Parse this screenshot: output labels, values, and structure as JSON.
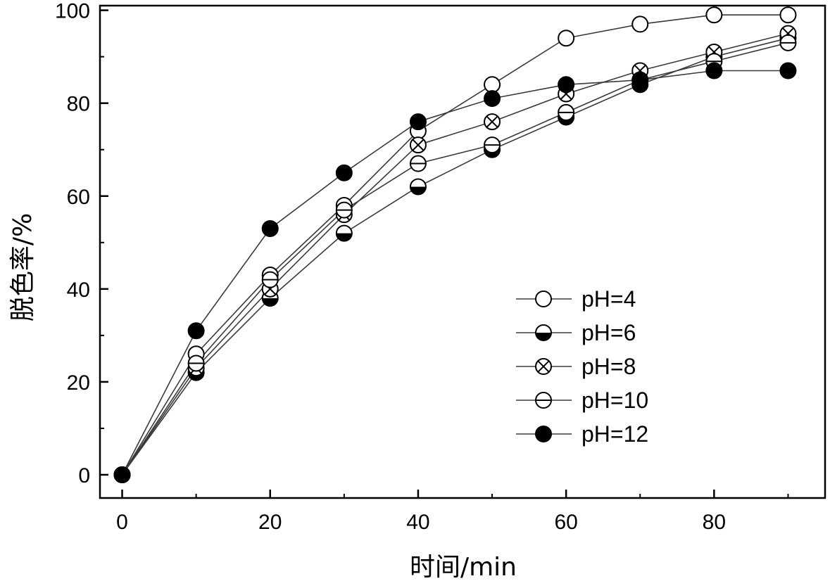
{
  "chart_data": {
    "type": "line",
    "title": "",
    "xlabel": "时间/min",
    "ylabel": "脱色率/%",
    "xlim": [
      -3,
      95
    ],
    "ylim": [
      -5,
      101
    ],
    "x_ticks": [
      0,
      20,
      40,
      60,
      80
    ],
    "y_ticks": [
      0,
      20,
      40,
      60,
      80,
      100
    ],
    "grid": false,
    "legend_position": "right-center",
    "x": [
      0,
      10,
      20,
      30,
      40,
      50,
      60,
      70,
      80,
      90
    ],
    "series": [
      {
        "name": "pH=4",
        "marker": "open-circle",
        "values": [
          0,
          26,
          43,
          58,
          74,
          84,
          94,
          97,
          99,
          99
        ]
      },
      {
        "name": "pH=6",
        "marker": "half-filled-circle",
        "values": [
          0,
          22,
          38,
          52,
          62,
          70,
          77,
          84,
          90,
          94
        ]
      },
      {
        "name": "pH=8",
        "marker": "crossed-circle",
        "values": [
          0,
          23,
          40,
          56,
          71,
          76,
          82,
          87,
          91,
          95
        ]
      },
      {
        "name": "pH=10",
        "marker": "lined-circle",
        "values": [
          0,
          24,
          42,
          57,
          67,
          71,
          78,
          85,
          89,
          93
        ]
      },
      {
        "name": "pH=12",
        "marker": "filled-circle",
        "values": [
          0,
          31,
          53,
          65,
          76,
          81,
          84,
          85,
          87,
          87
        ]
      }
    ],
    "colors": {
      "line": "#3a3a3a",
      "marker_stroke": "#000000",
      "fill": "#000000",
      "background": "#ffffff"
    }
  }
}
